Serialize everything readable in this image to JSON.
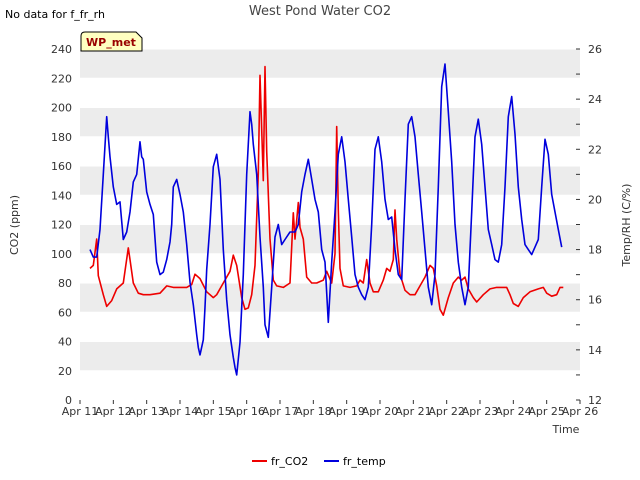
{
  "chart_data": {
    "type": "line",
    "title": "West Pond Water CO2",
    "note": "No data for f_fr_rh",
    "badge": "WP_met",
    "xlabel": "Time",
    "ylabel_left": "CO2 (ppm)",
    "ylabel_right": "Temp/RH (C/%)",
    "x_tick_labels": [
      "Apr 11",
      "Apr 12",
      "Apr 13",
      "Apr 14",
      "Apr 15",
      "Apr 16",
      "Apr 17",
      "Apr 18",
      "Apr 19",
      "Apr 20",
      "Apr 21",
      "Apr 22",
      "Apr 23",
      "Apr 24",
      "Apr 25",
      "Apr 26"
    ],
    "xlim": [
      11,
      26
    ],
    "ylim_left": [
      0,
      240
    ],
    "ylim_right": [
      12,
      26
    ],
    "y_ticks_left": [
      0,
      20,
      40,
      60,
      80,
      100,
      120,
      140,
      160,
      180,
      200,
      220,
      240
    ],
    "y_ticks_right": [
      12,
      14,
      16,
      18,
      20,
      22,
      24,
      26
    ],
    "grid": "horizontal alternating bands",
    "legend_position": "bottom-center",
    "series": [
      {
        "name": "fr_CO2",
        "axis": "left",
        "color": "#ee0000",
        "points": [
          [
            11.3,
            90
          ],
          [
            11.4,
            92
          ],
          [
            11.5,
            110
          ],
          [
            11.55,
            85
          ],
          [
            11.7,
            72
          ],
          [
            11.8,
            64
          ],
          [
            11.95,
            68
          ],
          [
            12.1,
            76
          ],
          [
            12.3,
            80
          ],
          [
            12.45,
            104
          ],
          [
            12.5,
            96
          ],
          [
            12.6,
            80
          ],
          [
            12.75,
            73
          ],
          [
            12.9,
            72
          ],
          [
            13.1,
            72
          ],
          [
            13.4,
            73
          ],
          [
            13.6,
            78
          ],
          [
            13.8,
            77
          ],
          [
            14.0,
            77
          ],
          [
            14.2,
            77
          ],
          [
            14.35,
            79
          ],
          [
            14.45,
            86
          ],
          [
            14.6,
            83
          ],
          [
            14.8,
            74
          ],
          [
            15.0,
            70
          ],
          [
            15.1,
            72
          ],
          [
            15.3,
            80
          ],
          [
            15.5,
            88
          ],
          [
            15.6,
            99
          ],
          [
            15.7,
            92
          ],
          [
            15.85,
            70
          ],
          [
            15.95,
            62
          ],
          [
            16.05,
            63
          ],
          [
            16.15,
            72
          ],
          [
            16.25,
            92
          ],
          [
            16.35,
            155
          ],
          [
            16.4,
            222
          ],
          [
            16.45,
            185
          ],
          [
            16.5,
            150
          ],
          [
            16.55,
            228
          ],
          [
            16.6,
            170
          ],
          [
            16.7,
            110
          ],
          [
            16.8,
            82
          ],
          [
            16.9,
            78
          ],
          [
            17.1,
            77
          ],
          [
            17.3,
            80
          ],
          [
            17.4,
            128
          ],
          [
            17.45,
            110
          ],
          [
            17.55,
            135
          ],
          [
            17.6,
            118
          ],
          [
            17.7,
            110
          ],
          [
            17.8,
            84
          ],
          [
            17.95,
            80
          ],
          [
            18.1,
            80
          ],
          [
            18.3,
            82
          ],
          [
            18.4,
            88
          ],
          [
            18.55,
            80
          ],
          [
            18.65,
            100
          ],
          [
            18.7,
            187
          ],
          [
            18.75,
            130
          ],
          [
            18.8,
            90
          ],
          [
            18.9,
            78
          ],
          [
            19.1,
            77
          ],
          [
            19.3,
            78
          ],
          [
            19.4,
            82
          ],
          [
            19.5,
            80
          ],
          [
            19.6,
            96
          ],
          [
            19.7,
            80
          ],
          [
            19.8,
            74
          ],
          [
            19.95,
            74
          ],
          [
            20.1,
            82
          ],
          [
            20.2,
            90
          ],
          [
            20.3,
            88
          ],
          [
            20.4,
            96
          ],
          [
            20.45,
            130
          ],
          [
            20.5,
            110
          ],
          [
            20.6,
            86
          ],
          [
            20.75,
            75
          ],
          [
            20.9,
            72
          ],
          [
            21.05,
            72
          ],
          [
            21.2,
            78
          ],
          [
            21.35,
            84
          ],
          [
            21.5,
            92
          ],
          [
            21.6,
            90
          ],
          [
            21.7,
            78
          ],
          [
            21.8,
            62
          ],
          [
            21.9,
            58
          ],
          [
            22.05,
            70
          ],
          [
            22.2,
            80
          ],
          [
            22.35,
            84
          ],
          [
            22.45,
            82
          ],
          [
            22.55,
            84
          ],
          [
            22.65,
            76
          ],
          [
            22.8,
            70
          ],
          [
            22.9,
            67
          ],
          [
            23.1,
            72
          ],
          [
            23.3,
            76
          ],
          [
            23.5,
            77
          ],
          [
            23.8,
            77
          ],
          [
            23.9,
            72
          ],
          [
            24.0,
            66
          ],
          [
            24.15,
            64
          ],
          [
            24.3,
            70
          ],
          [
            24.5,
            74
          ],
          [
            24.75,
            76
          ],
          [
            24.9,
            77
          ],
          [
            25.0,
            73
          ],
          [
            25.15,
            71
          ],
          [
            25.3,
            72
          ],
          [
            25.4,
            77
          ],
          [
            25.5,
            77
          ]
        ]
      },
      {
        "name": "fr_temp",
        "axis": "right",
        "color": "#0000dd",
        "points": [
          [
            11.3,
            18.0
          ],
          [
            11.4,
            17.7
          ],
          [
            11.5,
            17.7
          ],
          [
            11.6,
            18.8
          ],
          [
            11.7,
            21.0
          ],
          [
            11.8,
            23.3
          ],
          [
            11.85,
            22.5
          ],
          [
            11.9,
            21.7
          ],
          [
            12.0,
            20.5
          ],
          [
            12.1,
            19.8
          ],
          [
            12.2,
            19.9
          ],
          [
            12.3,
            18.4
          ],
          [
            12.4,
            18.7
          ],
          [
            12.5,
            19.5
          ],
          [
            12.6,
            20.7
          ],
          [
            12.7,
            21.0
          ],
          [
            12.8,
            22.3
          ],
          [
            12.85,
            21.7
          ],
          [
            12.9,
            21.6
          ],
          [
            13.0,
            20.3
          ],
          [
            13.1,
            19.8
          ],
          [
            13.2,
            19.4
          ],
          [
            13.3,
            17.5
          ],
          [
            13.4,
            17.0
          ],
          [
            13.5,
            17.1
          ],
          [
            13.6,
            17.6
          ],
          [
            13.7,
            18.3
          ],
          [
            13.75,
            19.0
          ],
          [
            13.8,
            20.5
          ],
          [
            13.9,
            20.8
          ],
          [
            14.0,
            20.2
          ],
          [
            14.1,
            19.5
          ],
          [
            14.2,
            18.2
          ],
          [
            14.3,
            16.7
          ],
          [
            14.4,
            15.8
          ],
          [
            14.5,
            14.6
          ],
          [
            14.55,
            14.1
          ],
          [
            14.6,
            13.8
          ],
          [
            14.7,
            14.4
          ],
          [
            14.75,
            15.7
          ],
          [
            14.8,
            17.2
          ],
          [
            14.9,
            19.0
          ],
          [
            15.0,
            21.3
          ],
          [
            15.1,
            21.8
          ],
          [
            15.2,
            20.8
          ],
          [
            15.3,
            18.0
          ],
          [
            15.4,
            16.0
          ],
          [
            15.5,
            14.6
          ],
          [
            15.6,
            13.7
          ],
          [
            15.65,
            13.3
          ],
          [
            15.7,
            13.0
          ],
          [
            15.8,
            14.3
          ],
          [
            15.9,
            17.0
          ],
          [
            16.0,
            21.0
          ],
          [
            16.1,
            23.5
          ],
          [
            16.15,
            23.0
          ],
          [
            16.2,
            22.2
          ],
          [
            16.3,
            21.0
          ],
          [
            16.4,
            18.5
          ],
          [
            16.5,
            16.5
          ],
          [
            16.55,
            15.0
          ],
          [
            16.65,
            14.5
          ],
          [
            16.75,
            16.5
          ],
          [
            16.85,
            18.5
          ],
          [
            16.95,
            19.0
          ],
          [
            17.05,
            18.2
          ],
          [
            17.15,
            18.4
          ],
          [
            17.3,
            18.7
          ],
          [
            17.45,
            18.7
          ],
          [
            17.55,
            19.0
          ],
          [
            17.65,
            20.3
          ],
          [
            17.75,
            21.0
          ],
          [
            17.85,
            21.6
          ],
          [
            17.95,
            20.8
          ],
          [
            18.05,
            20.0
          ],
          [
            18.15,
            19.5
          ],
          [
            18.25,
            18.0
          ],
          [
            18.35,
            17.5
          ],
          [
            18.45,
            15.1
          ],
          [
            18.55,
            17.5
          ],
          [
            18.65,
            19.5
          ],
          [
            18.75,
            21.8
          ],
          [
            18.85,
            22.5
          ],
          [
            18.95,
            21.5
          ],
          [
            19.05,
            20.0
          ],
          [
            19.15,
            18.5
          ],
          [
            19.25,
            17.0
          ],
          [
            19.35,
            16.5
          ],
          [
            19.45,
            16.2
          ],
          [
            19.55,
            16.0
          ],
          [
            19.65,
            16.5
          ],
          [
            19.75,
            19.0
          ],
          [
            19.85,
            22.0
          ],
          [
            19.95,
            22.5
          ],
          [
            20.05,
            21.5
          ],
          [
            20.15,
            20.0
          ],
          [
            20.25,
            19.2
          ],
          [
            20.35,
            19.3
          ],
          [
            20.45,
            18.0
          ],
          [
            20.55,
            17.0
          ],
          [
            20.65,
            16.8
          ],
          [
            20.75,
            20.0
          ],
          [
            20.85,
            23.0
          ],
          [
            20.95,
            23.3
          ],
          [
            21.05,
            22.5
          ],
          [
            21.15,
            21.0
          ],
          [
            21.25,
            19.5
          ],
          [
            21.35,
            18.0
          ],
          [
            21.45,
            16.5
          ],
          [
            21.55,
            15.8
          ],
          [
            21.65,
            17.0
          ],
          [
            21.75,
            20.5
          ],
          [
            21.85,
            24.5
          ],
          [
            21.95,
            25.4
          ],
          [
            22.05,
            23.5
          ],
          [
            22.15,
            21.5
          ],
          [
            22.25,
            19.0
          ],
          [
            22.35,
            17.5
          ],
          [
            22.45,
            16.5
          ],
          [
            22.55,
            15.8
          ],
          [
            22.65,
            16.5
          ],
          [
            22.75,
            19.5
          ],
          [
            22.85,
            22.5
          ],
          [
            22.95,
            23.2
          ],
          [
            23.05,
            22.2
          ],
          [
            23.15,
            20.5
          ],
          [
            23.25,
            18.8
          ],
          [
            23.35,
            18.2
          ],
          [
            23.45,
            17.6
          ],
          [
            23.55,
            17.5
          ],
          [
            23.65,
            18.2
          ],
          [
            23.75,
            20.5
          ],
          [
            23.85,
            23.3
          ],
          [
            23.95,
            24.1
          ],
          [
            24.05,
            22.6
          ],
          [
            24.15,
            20.5
          ],
          [
            24.25,
            19.2
          ],
          [
            24.35,
            18.2
          ],
          [
            24.45,
            18.0
          ],
          [
            24.55,
            17.8
          ],
          [
            24.65,
            18.1
          ],
          [
            24.75,
            18.4
          ],
          [
            24.85,
            20.5
          ],
          [
            24.95,
            22.4
          ],
          [
            25.05,
            21.8
          ],
          [
            25.15,
            20.2
          ],
          [
            25.25,
            19.5
          ],
          [
            25.35,
            18.8
          ],
          [
            25.45,
            18.1
          ]
        ]
      }
    ]
  }
}
